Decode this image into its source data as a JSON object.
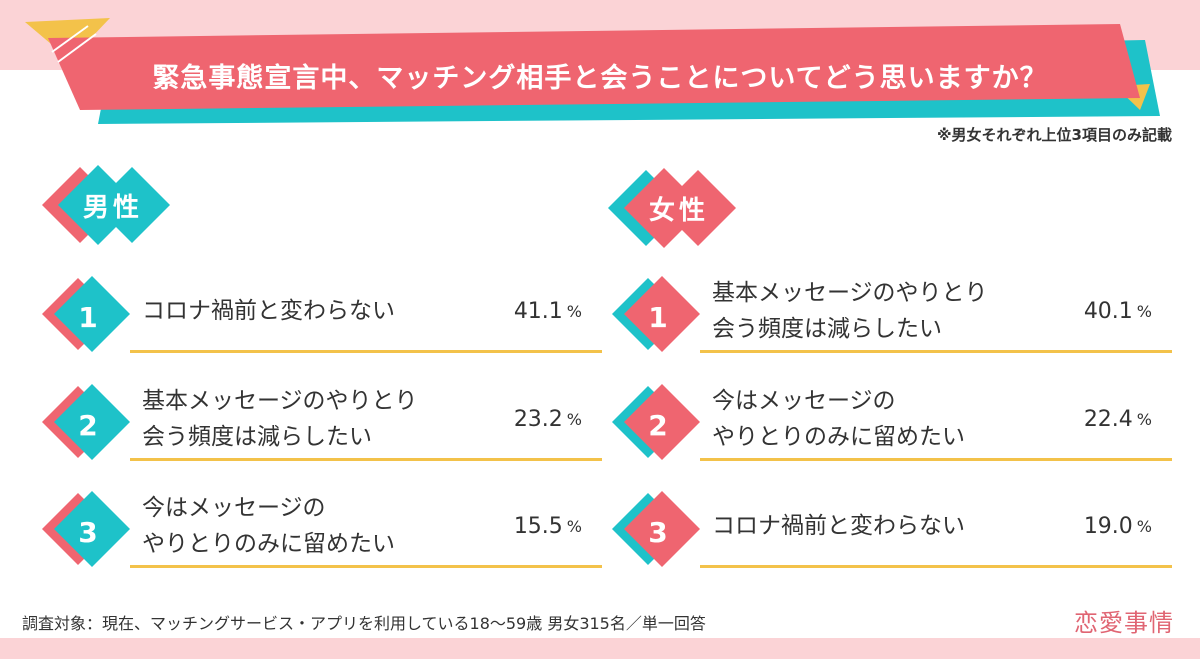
{
  "title": "緊急事態宣言中、マッチング相手と会うことについてどう思いますか？",
  "note": "※男女それぞれ上位3項目のみ記載",
  "percent_unit": "%",
  "footer": "調査対象：現在、マッチングサービス・アプリを利用している18〜59歳 男女315名／単一回答",
  "logo": "恋愛事情",
  "colors": {
    "pink": "#ef6570",
    "teal": "#1ec2c9",
    "yellow": "#f3c24a",
    "band": "#fbd3d6"
  },
  "chart_data": [
    {
      "type": "table",
      "title": "男性",
      "rows": [
        {
          "rank": "1",
          "label": "コロナ禍前と変わらない",
          "value": "41.1"
        },
        {
          "rank": "2",
          "label": "基本メッセージのやりとり\n会う頻度は減らしたい",
          "value": "23.2"
        },
        {
          "rank": "3",
          "label": "今はメッセージの\nやりとりのみに留めたい",
          "value": "15.5"
        }
      ]
    },
    {
      "type": "table",
      "title": "女性",
      "rows": [
        {
          "rank": "1",
          "label": "基本メッセージのやりとり\n会う頻度は減らしたい",
          "value": "40.1"
        },
        {
          "rank": "2",
          "label": "今はメッセージの\nやりとりのみに留めたい",
          "value": "22.4"
        },
        {
          "rank": "3",
          "label": "コロナ禍前と変わらない",
          "value": "19.0"
        }
      ]
    }
  ]
}
